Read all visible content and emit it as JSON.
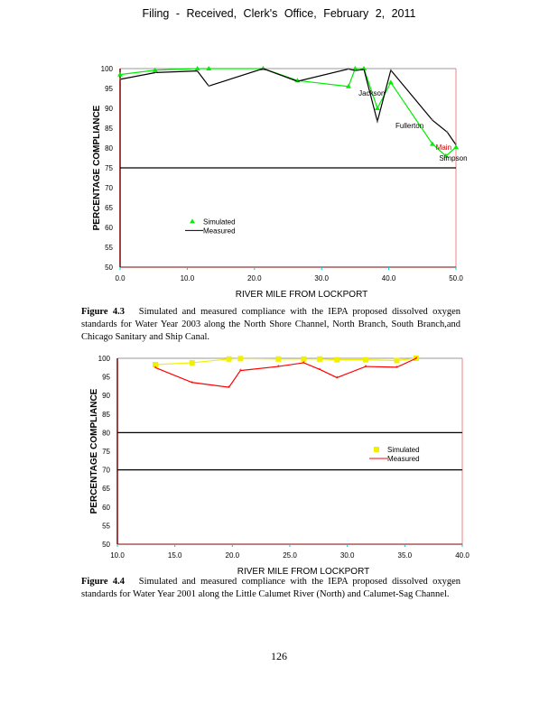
{
  "header": "Filing - Received, Clerk's Office, February 2, 2011",
  "page_number": "126",
  "figure1": {
    "label": "Figure 4.3",
    "text": "Simulated and measured compliance with the IEPA proposed dissolved oxygen standards for Water Year 2003 along the North Shore Channel, North Branch, South Branch,and Chicago Sanitary and Ship Canal."
  },
  "figure2": {
    "label": "Figure 4.4",
    "text": "Simulated and measured compliance with the IEPA proposed dissolved oxygen standards for Water Year 2001 along the Little Calumet River (North) and Calumet-Sag Channel."
  },
  "chart_data": [
    {
      "type": "line",
      "xlabel": "RIVER MILE FROM LOCKPORT",
      "ylabel": "PERCENTAGE COMPLIANCE",
      "xlim": [
        0,
        50
      ],
      "ylim": [
        50,
        100
      ],
      "xticks": [
        "0.0",
        "10.0",
        "20.0",
        "30.0",
        "40.0",
        "50.0"
      ],
      "yticks": [
        "50",
        "55",
        "60",
        "65",
        "70",
        "75",
        "80",
        "85",
        "90",
        "95",
        "100"
      ],
      "reference_lines": [
        75
      ],
      "legend": "center-left",
      "series": [
        {
          "name": "Simulated",
          "color": "#00ee00",
          "points": [
            [
              0,
              98.5
            ],
            [
              5.2,
              99.6
            ],
            [
              11.5,
              100
            ],
            [
              21.3,
              100
            ],
            [
              26.4,
              97
            ],
            [
              34,
              95.5
            ],
            [
              35,
              100
            ],
            [
              36.3,
              100
            ],
            [
              38.3,
              90
            ],
            [
              40.3,
              96.5
            ],
            [
              46.5,
              81
            ],
            [
              48.5,
              78
            ],
            [
              50,
              80.2
            ]
          ],
          "extra_points": [
            [
              13.2,
              100
            ]
          ]
        },
        {
          "name": "Measured",
          "color": "#000000",
          "points": [
            [
              0,
              97.3
            ],
            [
              5.3,
              99
            ],
            [
              11.5,
              99.4
            ],
            [
              13.2,
              95.6
            ],
            [
              21.3,
              100
            ],
            [
              26.4,
              96.8
            ],
            [
              34,
              99.9
            ],
            [
              35,
              99.5
            ],
            [
              36.3,
              99.8
            ],
            [
              38.3,
              86.7
            ],
            [
              40.3,
              99.6
            ],
            [
              46.5,
              87
            ],
            [
              48.7,
              84
            ],
            [
              50,
              80.8
            ]
          ]
        }
      ],
      "annotations": [
        {
          "text": "Jackson",
          "x": 35.5,
          "y": 93.2
        },
        {
          "text": "Fullerton",
          "x": 41,
          "y": 85
        },
        {
          "text": "Main",
          "x": 47,
          "y": 79.5
        },
        {
          "text": "Simpson",
          "x": 47.5,
          "y": 76.8
        }
      ]
    },
    {
      "type": "line",
      "xlabel": "RIVER MILE FROM LOCKPORT",
      "ylabel": "PERCENTAGE COMPLIANCE",
      "xlim": [
        10,
        40
      ],
      "ylim": [
        50,
        100
      ],
      "xticks": [
        "10.0",
        "15.0",
        "20.0",
        "25.0",
        "30.0",
        "35.0",
        "40.0"
      ],
      "yticks": [
        "50",
        "55",
        "60",
        "65",
        "70",
        "75",
        "80",
        "85",
        "90",
        "95",
        "100"
      ],
      "reference_lines": [
        80,
        70
      ],
      "legend": "center-right",
      "series": [
        {
          "name": "Simulated",
          "color": "#f0f000",
          "points": [
            [
              13.3,
              98.3
            ],
            [
              16.5,
              98.8
            ],
            [
              19.7,
              99.8
            ],
            [
              20.7,
              99.9
            ],
            [
              24,
              99.8
            ],
            [
              26.2,
              99.8
            ],
            [
              27.6,
              99.8
            ],
            [
              29.1,
              99.6
            ],
            [
              31.6,
              99.6
            ],
            [
              34.3,
              99.4
            ],
            [
              36,
              100
            ]
          ]
        },
        {
          "name": "Measured",
          "color": "#ff0000",
          "points": [
            [
              13.3,
              97.5
            ],
            [
              16.5,
              93.5
            ],
            [
              19.7,
              92.2
            ],
            [
              20.7,
              96.7
            ],
            [
              24,
              97.8
            ],
            [
              26.2,
              98.8
            ],
            [
              27.6,
              97
            ],
            [
              29.1,
              94.8
            ],
            [
              31.6,
              97.8
            ],
            [
              34.3,
              97.6
            ],
            [
              36,
              100
            ]
          ]
        }
      ]
    }
  ]
}
